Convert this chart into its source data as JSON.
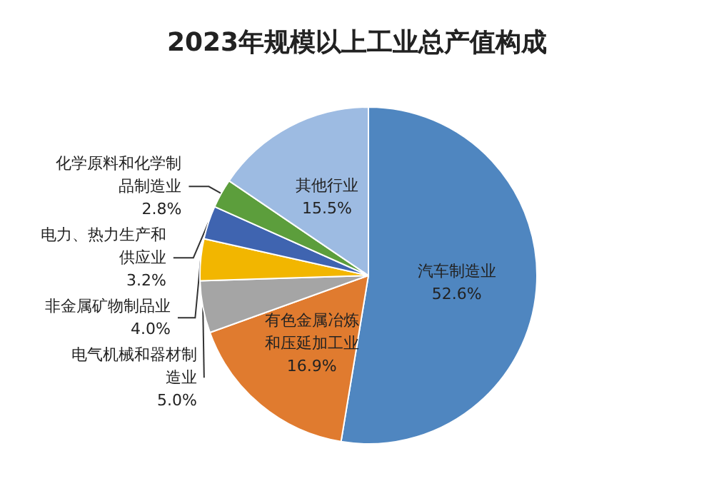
{
  "chart_data": {
    "type": "pie",
    "title": "2023年规模以上工业总产值构成",
    "categories": [
      "汽车制造业",
      "有色金属冶炼和压延加工业",
      "电气机械和器材制造业",
      "非金属矿物制品业",
      "电力、热力生产和供应业",
      "化学原料和化学制品制造业",
      "其他行业"
    ],
    "values": [
      52.6,
      16.9,
      5.0,
      4.0,
      3.2,
      2.8,
      15.5
    ],
    "colors": [
      "#4f86c0",
      "#e07b2f",
      "#a5a5a5",
      "#f2b600",
      "#3f64b0",
      "#5c9e3c",
      "#9dbbe2"
    ],
    "value_labels": [
      "52.6%",
      "16.9%",
      "5.0%",
      "4.0%",
      "3.2%",
      "2.8%",
      "15.5%"
    ],
    "legend": false
  }
}
